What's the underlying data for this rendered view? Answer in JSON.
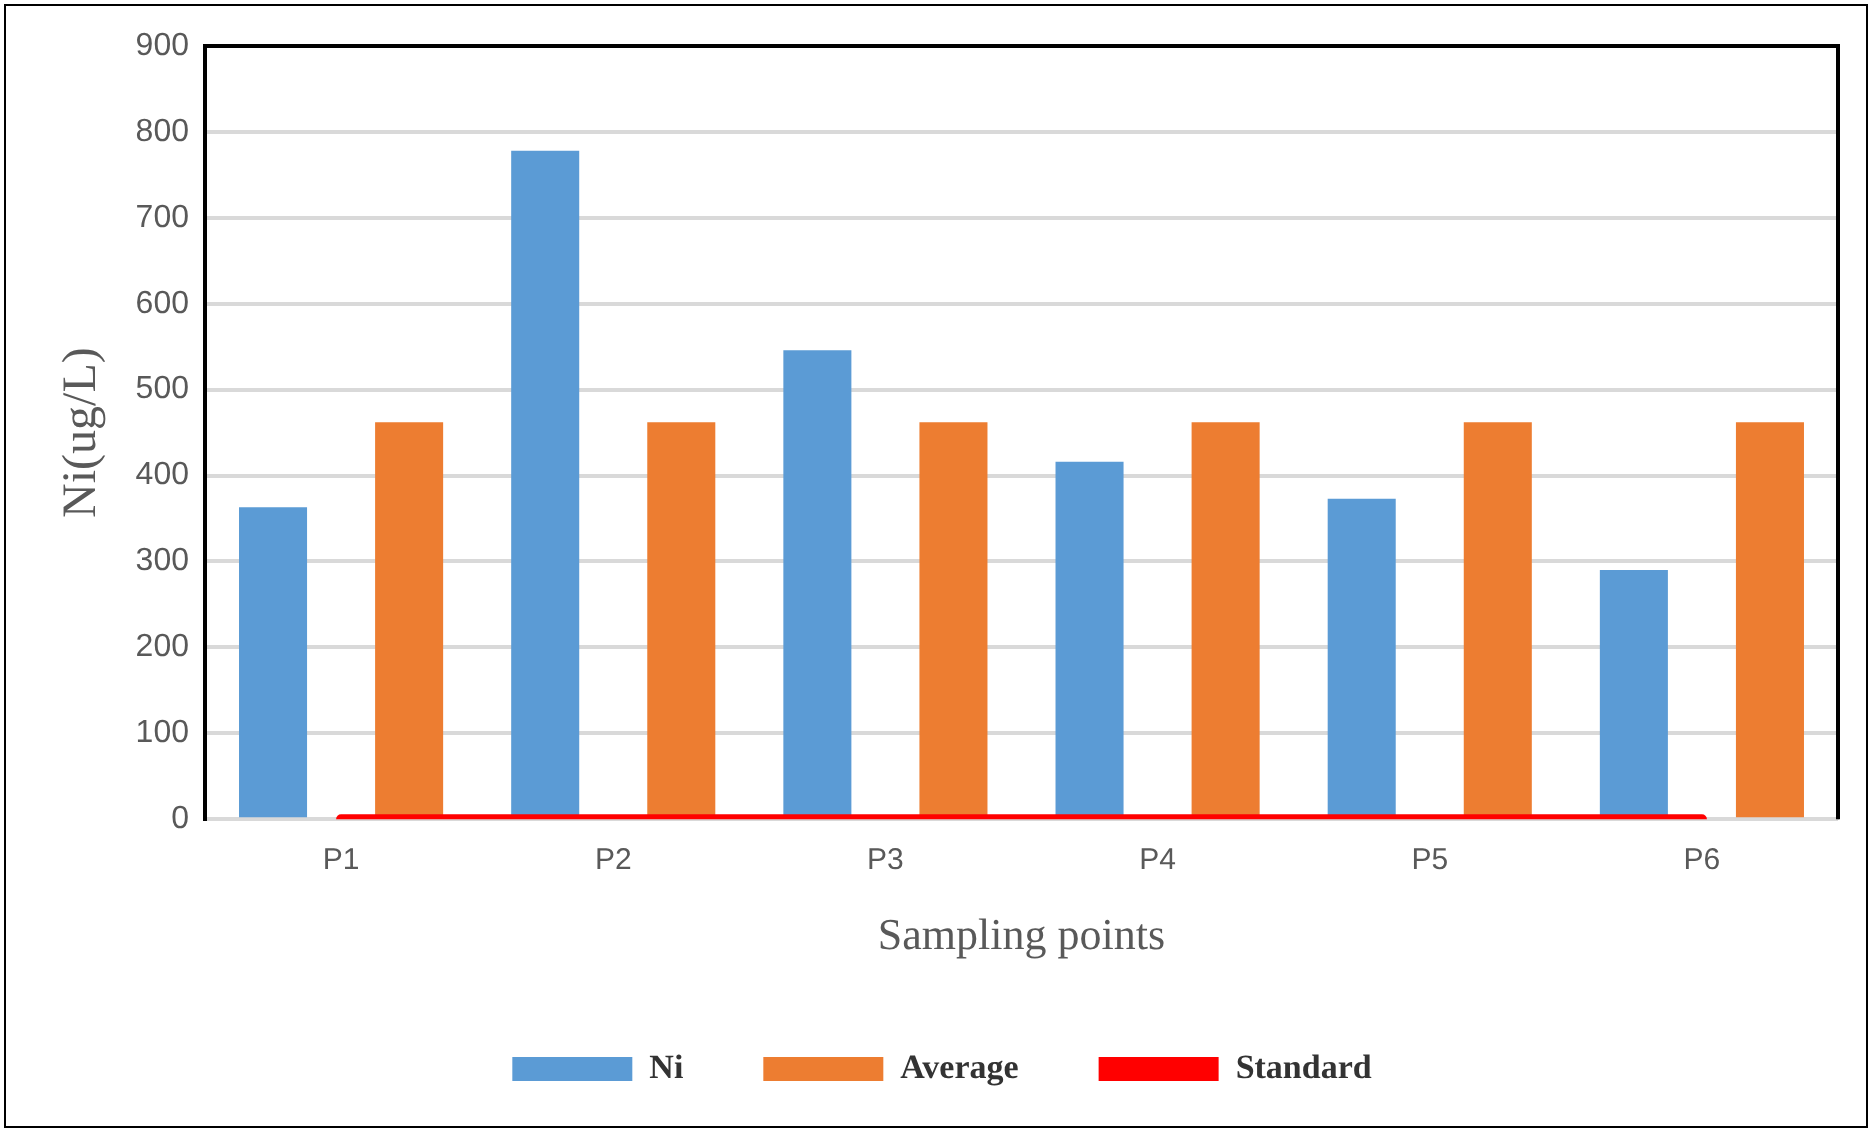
{
  "chart_data": {
    "type": "bar",
    "xlabel": "Sampling points",
    "ylabel": "Ni(ug/L)",
    "categories": [
      "P1",
      "P2",
      "P3",
      "P4",
      "P5",
      "P6"
    ],
    "series": [
      {
        "name": "Ni",
        "color": "#5b9bd5",
        "values": [
          363,
          778,
          546,
          416,
          373,
          290
        ]
      },
      {
        "name": "Average",
        "color": "#ed7d31",
        "values": [
          462,
          462,
          462,
          462,
          462,
          462
        ]
      },
      {
        "name": "Standard",
        "type": "line",
        "color": "#ff0000",
        "values": [
          0,
          0,
          0,
          0,
          0,
          0
        ]
      }
    ],
    "ylim": [
      0,
      900
    ],
    "yticks": [
      0,
      100,
      200,
      300,
      400,
      500,
      600,
      700,
      800,
      900
    ],
    "grid": "y",
    "legend": "bottom",
    "marker": "none"
  }
}
